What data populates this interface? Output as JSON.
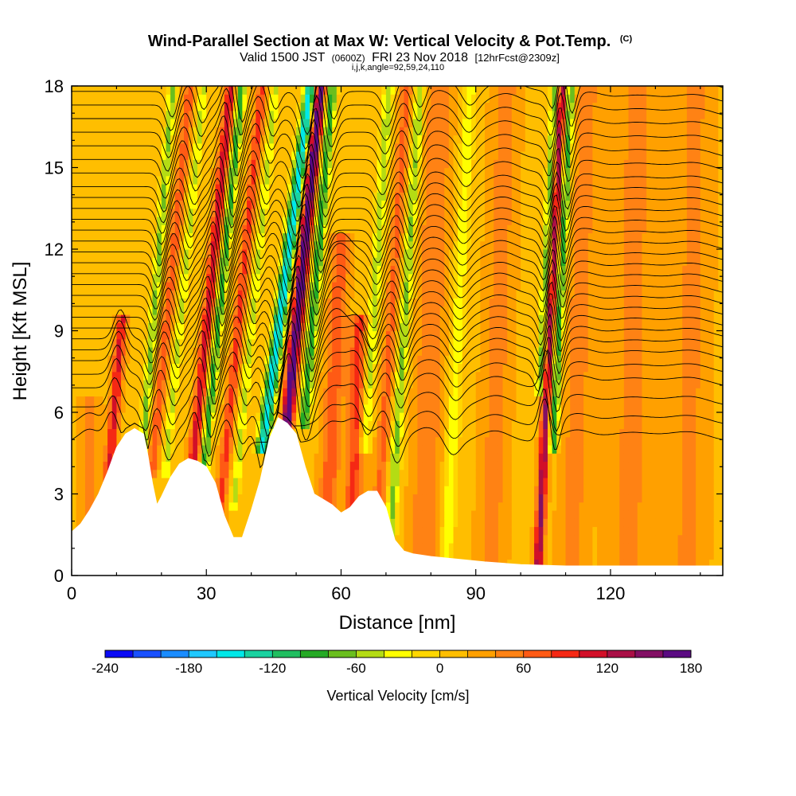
{
  "header": {
    "title_main": "Wind-Parallel Section at Max W: Vertical Velocity & Pot.Temp.",
    "title_mark": "(C)",
    "valid_prefix": "Valid 1500 JST",
    "valid_utc": "(0600Z)",
    "valid_date": "FRI 23 Nov 2018",
    "forecast": "[12hrFcst@2309z]",
    "indices": "i,j,k,angle=92,59,24,110"
  },
  "chart_data": {
    "type": "heatmap",
    "xlabel": "Distance [nm]",
    "ylabel": "Height [Kft MSL]",
    "xlim": [
      0,
      145
    ],
    "ylim": [
      0,
      18
    ],
    "x_ticks": [
      0,
      30,
      60,
      90,
      120
    ],
    "x_tick_labels": [
      "0",
      "30",
      "60",
      "90",
      "120"
    ],
    "y_ticks": [
      0,
      3,
      6,
      9,
      12,
      15,
      18
    ],
    "y_tick_labels": [
      "0",
      "3",
      "6",
      "9",
      "12",
      "15",
      "18"
    ],
    "colorbar": {
      "title": "Vertical Velocity [cm/s]",
      "min": -240,
      "max": 180,
      "step": 20,
      "tick_values": [
        -240,
        -180,
        -120,
        -60,
        0,
        60,
        120,
        180
      ],
      "tick_labels": [
        "-240",
        "-180",
        "-120",
        "-60",
        "0",
        "60",
        "120",
        "180"
      ],
      "colors": [
        "#0a0af5",
        "#1950ff",
        "#1a8cff",
        "#1fc8ff",
        "#00e8e8",
        "#19d2a0",
        "#20be60",
        "#25aa25",
        "#6abe1e",
        "#b4dc14",
        "#ffff00",
        "#ffd700",
        "#ffbe00",
        "#ffa000",
        "#ff8214",
        "#ff5a14",
        "#f52814",
        "#d20f28",
        "#aa0f46",
        "#820f64",
        "#5a0a82"
      ]
    },
    "terrain_kft": [
      [
        0,
        1.6
      ],
      [
        2,
        1.9
      ],
      [
        4,
        2.4
      ],
      [
        6,
        3.0
      ],
      [
        8,
        3.8
      ],
      [
        10,
        4.7
      ],
      [
        12,
        5.2
      ],
      [
        14,
        5.4
      ],
      [
        16,
        5.2
      ],
      [
        17,
        4.4
      ],
      [
        18,
        3.4
      ],
      [
        19,
        2.6
      ],
      [
        20,
        2.9
      ],
      [
        22,
        3.6
      ],
      [
        24,
        4.1
      ],
      [
        26,
        4.3
      ],
      [
        28,
        4.2
      ],
      [
        30,
        4.0
      ],
      [
        32,
        3.4
      ],
      [
        34,
        2.2
      ],
      [
        36,
        1.4
      ],
      [
        38,
        1.4
      ],
      [
        40,
        2.4
      ],
      [
        42,
        3.5
      ],
      [
        44,
        5.0
      ],
      [
        46,
        5.8
      ],
      [
        48,
        5.6
      ],
      [
        50,
        5.2
      ],
      [
        52,
        4.0
      ],
      [
        54,
        3.0
      ],
      [
        56,
        2.8
      ],
      [
        58,
        2.6
      ],
      [
        60,
        2.3
      ],
      [
        62,
        2.5
      ],
      [
        64,
        2.9
      ],
      [
        66,
        3.1
      ],
      [
        68,
        3.1
      ],
      [
        70,
        2.5
      ],
      [
        72,
        1.3
      ],
      [
        74,
        0.9
      ],
      [
        76,
        0.8
      ],
      [
        80,
        0.7
      ],
      [
        86,
        0.6
      ],
      [
        92,
        0.5
      ],
      [
        100,
        0.4
      ],
      [
        110,
        0.35
      ],
      [
        120,
        0.35
      ],
      [
        130,
        0.35
      ],
      [
        145,
        0.35
      ]
    ],
    "w_features": [
      {
        "x": 4,
        "w": 40,
        "sigma": 2.0,
        "z0": 0,
        "z1": 6,
        "tilt": 0
      },
      {
        "x": 11,
        "w": 90,
        "sigma": 1.2,
        "z0": 3,
        "z1": 9,
        "tilt": 0.5
      },
      {
        "x": 18,
        "w": -80,
        "sigma": 1.0,
        "z0": 4,
        "z1": 18,
        "tilt": 0.5
      },
      {
        "x": 21,
        "w": 60,
        "sigma": 1.2,
        "z0": 4,
        "z1": 18,
        "tilt": 0.6
      },
      {
        "x": 24,
        "w": -60,
        "sigma": 1.0,
        "z0": 4,
        "z1": 18,
        "tilt": 0.6
      },
      {
        "x": 30,
        "w": 100,
        "sigma": 1.2,
        "z0": 3,
        "z1": 18,
        "tilt": 0.6
      },
      {
        "x": 32.5,
        "w": -110,
        "sigma": 1.0,
        "z0": 2,
        "z1": 18,
        "tilt": 0.6
      },
      {
        "x": 37,
        "w": 70,
        "sigma": 1.2,
        "z0": 2,
        "z1": 18,
        "tilt": 0.6
      },
      {
        "x": 40,
        "w": -60,
        "sigma": 1.0,
        "z0": 3,
        "z1": 18,
        "tilt": 0.6
      },
      {
        "x": 46,
        "w": -170,
        "sigma": 1.4,
        "z0": 5,
        "z1": 18,
        "tilt": 0.8
      },
      {
        "x": 50,
        "w": 170,
        "sigma": 1.3,
        "z0": 6,
        "z1": 18,
        "tilt": 0.6
      },
      {
        "x": 53.5,
        "w": -110,
        "sigma": 1.2,
        "z0": 6,
        "z1": 18,
        "tilt": 0.5
      },
      {
        "x": 59,
        "w": 60,
        "sigma": 2.0,
        "z0": 2,
        "z1": 12,
        "tilt": 0.3
      },
      {
        "x": 64,
        "w": 70,
        "sigma": 2.0,
        "z0": 2,
        "z1": 9,
        "tilt": 0.2
      },
      {
        "x": 67,
        "w": -70,
        "sigma": 1.2,
        "z0": 5,
        "z1": 18,
        "tilt": 0.4
      },
      {
        "x": 71,
        "w": 50,
        "sigma": 1.5,
        "z0": 1,
        "z1": 18,
        "tilt": 0.4
      },
      {
        "x": 74,
        "w": -80,
        "sigma": 1.2,
        "z0": 0.5,
        "z1": 18,
        "tilt": 0.4
      },
      {
        "x": 80,
        "w": 45,
        "sigma": 3.0,
        "z0": 0.5,
        "z1": 18,
        "tilt": 0.2
      },
      {
        "x": 86,
        "w": -50,
        "sigma": 1.5,
        "z0": 0.5,
        "z1": 18,
        "tilt": 0.3
      },
      {
        "x": 95,
        "w": 35,
        "sigma": 3.0,
        "z0": 0.5,
        "z1": 18,
        "tilt": 0.2
      },
      {
        "x": 105,
        "w": -90,
        "sigma": 1.0,
        "z0": 7,
        "z1": 18,
        "tilt": 0.3
      },
      {
        "x": 106.5,
        "w": 130,
        "sigma": 1.0,
        "z0": 0.4,
        "z1": 18,
        "tilt": 0.3
      },
      {
        "x": 108.5,
        "w": -110,
        "sigma": 1.0,
        "z0": 5,
        "z1": 18,
        "tilt": 0.3
      },
      {
        "x": 113,
        "w": 35,
        "sigma": 3.0,
        "z0": 0.4,
        "z1": 18,
        "tilt": 0.2
      },
      {
        "x": 125,
        "w": 30,
        "sigma": 5.0,
        "z0": 0.4,
        "z1": 18,
        "tilt": 0.1
      },
      {
        "x": 138,
        "w": 30,
        "sigma": 4.0,
        "z0": 0.4,
        "z1": 18,
        "tilt": 0.1
      }
    ],
    "contour_levels_kft": [
      4.9,
      5.5,
      6.2,
      6.9,
      7.4,
      7.9,
      8.3,
      8.7,
      9.1,
      9.5,
      9.9,
      10.3,
      10.7,
      11.1,
      11.5,
      11.9,
      12.3,
      12.7,
      13.1,
      13.5,
      13.9,
      14.3,
      14.8,
      15.3,
      15.8,
      16.3,
      16.8,
      17.3,
      17.8
    ]
  }
}
